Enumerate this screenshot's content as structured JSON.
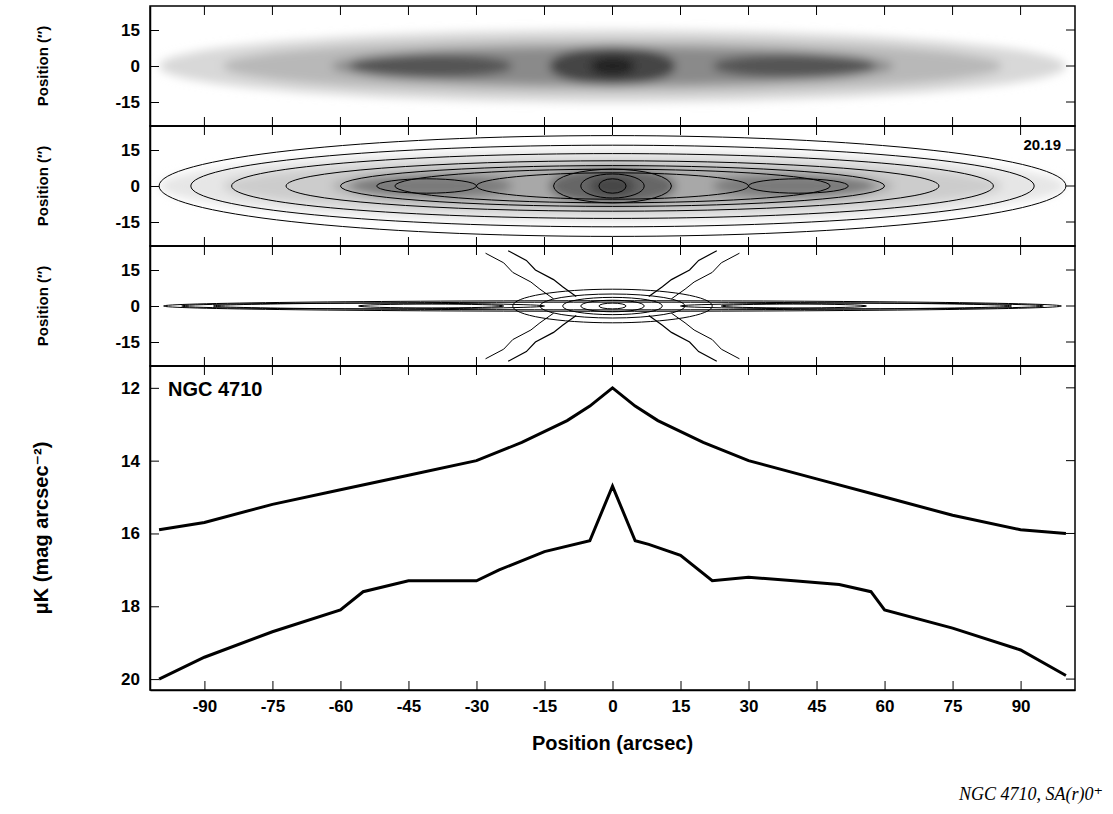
{
  "chart_data": [
    {
      "type": "image",
      "ylabel": "Position (″)",
      "tick_labels": "y",
      "xlim": [
        -102,
        102
      ],
      "xticks": [
        -90,
        -75,
        -60,
        -45,
        -30,
        -15,
        0,
        15,
        30,
        45,
        60,
        75,
        90
      ],
      "ylim": [
        -25,
        25
      ],
      "yticks": [
        15,
        0,
        -15
      ]
    },
    {
      "type": "contour",
      "ylabel": "Position (″)",
      "tick_labels": "y",
      "annotation": "20.19",
      "xlim": [
        -102,
        102
      ],
      "xticks": [
        -90,
        -75,
        -60,
        -45,
        -30,
        -15,
        0,
        15,
        30,
        45,
        60,
        75,
        90
      ],
      "ylim": [
        -25,
        25
      ],
      "yticks": [
        15,
        0,
        -15
      ]
    },
    {
      "type": "residual",
      "ylabel": "Position (″)",
      "tick_labels": "y",
      "xlim": [
        -102,
        102
      ],
      "xticks": [
        -90,
        -75,
        -60,
        -45,
        -30,
        -15,
        0,
        15,
        30,
        45,
        60,
        75,
        90
      ],
      "ylim": [
        -25,
        25
      ],
      "yticks": [
        15,
        0,
        -15
      ]
    },
    {
      "type": "line",
      "annotation": "NGC 4710",
      "xlabel": "Position (arcsec)",
      "ylabel": "μK (mag arcsec⁻²)",
      "xlim": [
        -102,
        102
      ],
      "xticks": [
        -90,
        -75,
        -60,
        -45,
        -30,
        -15,
        0,
        15,
        30,
        45,
        60,
        75,
        90
      ],
      "ylim": [
        20.3,
        11.4
      ],
      "yticks": [
        12,
        14,
        16,
        18,
        20
      ],
      "series": [
        {
          "color": "#000000",
          "line_style": "solid",
          "x": [
            -100,
            -90,
            -75,
            -60,
            -45,
            -30,
            -20,
            -10,
            -5,
            0,
            5,
            10,
            20,
            30,
            45,
            60,
            75,
            90,
            100
          ],
          "values": [
            15.9,
            15.7,
            15.2,
            14.8,
            14.4,
            14.0,
            13.5,
            12.9,
            12.5,
            12.0,
            12.5,
            12.9,
            13.5,
            14.0,
            14.5,
            15.0,
            15.5,
            15.9,
            16.0
          ]
        },
        {
          "color": "#000000",
          "line_style": "solid",
          "x": [
            -100,
            -90,
            -75,
            -60,
            -55,
            -45,
            -35,
            -30,
            -25,
            -15,
            -5,
            0,
            5,
            8,
            15,
            22,
            30,
            40,
            50,
            57,
            60,
            75,
            90,
            100
          ],
          "values": [
            20.0,
            19.4,
            18.7,
            18.1,
            17.6,
            17.3,
            17.3,
            17.3,
            17.0,
            16.5,
            16.2,
            14.7,
            16.2,
            16.3,
            16.6,
            17.3,
            17.2,
            17.3,
            17.4,
            17.6,
            18.1,
            18.6,
            19.2,
            19.9
          ]
        }
      ]
    }
  ],
  "caption": "NGC 4710, SA(r)0⁺"
}
